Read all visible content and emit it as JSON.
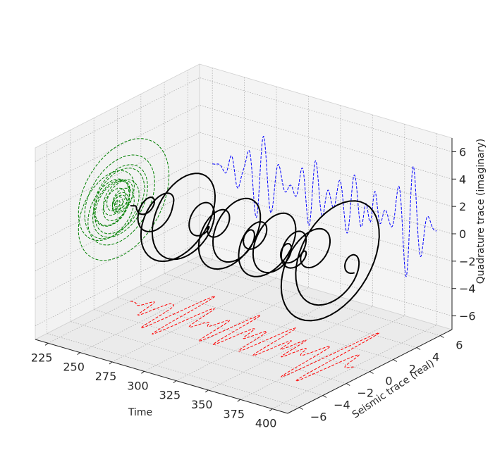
{
  "chart_data": {
    "type": "line3d",
    "title": "",
    "axes": {
      "x": {
        "label": "Time",
        "ticks": [
          225,
          250,
          275,
          300,
          325,
          350,
          375,
          400
        ],
        "lim": [
          215,
          412
        ]
      },
      "y": {
        "label": "Seismic trace (real)",
        "ticks": [
          -6,
          -4,
          -2,
          0,
          2,
          4,
          6
        ],
        "lim": [
          -7,
          7
        ]
      },
      "z": {
        "label": "Quadrature trace (imaginary)",
        "ticks": [
          -6,
          -4,
          -2,
          0,
          2,
          4,
          6
        ],
        "lim": [
          -7,
          7
        ]
      }
    },
    "grid": true,
    "series": [
      {
        "style": "solid",
        "color": "#000000",
        "projection": "none",
        "t_range": [
          225,
          400
        ],
        "components": [
          {
            "amp": 1.2,
            "center": 246,
            "width": 9,
            "period": 9.5
          },
          {
            "amp": 3.2,
            "center": 262,
            "width": 16,
            "period": 12
          },
          {
            "amp": 2.6,
            "center": 303,
            "width": 12,
            "period": 11
          },
          {
            "amp": 2.3,
            "center": 333,
            "width": 14,
            "period": 12
          },
          {
            "amp": 1.8,
            "center": 350,
            "width": 7,
            "period": 9
          },
          {
            "amp": 4.4,
            "center": 379,
            "width": 11,
            "period": 12
          }
        ]
      },
      {
        "style": "dashed",
        "color": "#0000ff",
        "projection": "back-wall (y = 7)",
        "t_range": [
          225,
          400
        ]
      },
      {
        "style": "dashed",
        "color": "#ff0000",
        "projection": "floor (z = -7)",
        "t_range": [
          225,
          400
        ]
      },
      {
        "style": "dashed",
        "color": "#008000",
        "projection": "left-wall (x = 215)",
        "t_range": [
          225,
          400
        ]
      }
    ]
  }
}
